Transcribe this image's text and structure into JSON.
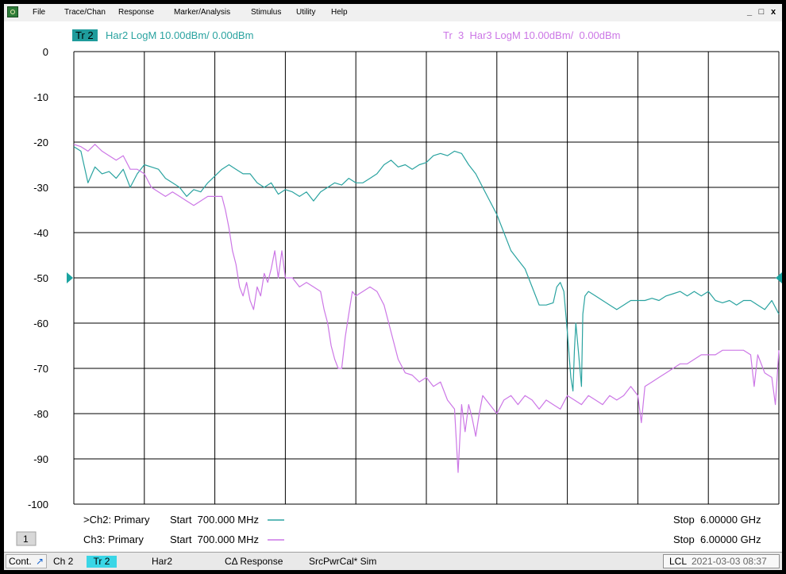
{
  "menubar": {
    "items": [
      "File",
      "Trace/Chan",
      "Response",
      "Marker/Analysis",
      "Stimulus",
      "Utility",
      "Help"
    ],
    "window_controls": [
      "_",
      "□",
      "x"
    ]
  },
  "trace_header": {
    "tr2_label": "Tr 2",
    "tr2_text": "Har2 LogM 10.00dBm/  0.00dBm",
    "tr3_text": "Tr  3  Har3 LogM 10.00dBm/  0.00dBm"
  },
  "colors": {
    "trace2": "#2aa3a0",
    "trace3": "#cc77e6",
    "tr2_badge": "#1f9c9c",
    "grid": "#000000",
    "ref_marker_left": "#1aa3a0",
    "ref_marker_right": "#1aa3a0"
  },
  "chart_data": {
    "type": "line",
    "ylim": [
      -100,
      0
    ],
    "xlim": [
      0,
      10
    ],
    "y_ticks": [
      "0",
      "-10",
      "-20",
      "-30",
      "-40",
      "-50",
      "-60",
      "-70",
      "-80",
      "-90",
      "-100"
    ],
    "reference_level": -50,
    "grid": true,
    "series": [
      {
        "key": "tr2",
        "points": [
          [
            0,
            -21
          ],
          [
            0.1,
            -22
          ],
          [
            0.2,
            -29
          ],
          [
            0.3,
            -25.5
          ],
          [
            0.4,
            -27
          ],
          [
            0.5,
            -26.5
          ],
          [
            0.6,
            -28
          ],
          [
            0.7,
            -26
          ],
          [
            0.8,
            -30
          ],
          [
            0.9,
            -27
          ],
          [
            1.0,
            -25
          ],
          [
            1.1,
            -25.5
          ],
          [
            1.2,
            -26
          ],
          [
            1.3,
            -28
          ],
          [
            1.4,
            -29
          ],
          [
            1.5,
            -30
          ],
          [
            1.6,
            -32
          ],
          [
            1.7,
            -30.5
          ],
          [
            1.8,
            -31
          ],
          [
            1.9,
            -29
          ],
          [
            2.0,
            -27.5
          ],
          [
            2.1,
            -26
          ],
          [
            2.2,
            -25
          ],
          [
            2.3,
            -26
          ],
          [
            2.4,
            -27
          ],
          [
            2.5,
            -27
          ],
          [
            2.6,
            -29
          ],
          [
            2.7,
            -30
          ],
          [
            2.8,
            -29
          ],
          [
            2.9,
            -31.5
          ],
          [
            3.0,
            -30.5
          ],
          [
            3.1,
            -31
          ],
          [
            3.2,
            -32
          ],
          [
            3.3,
            -31
          ],
          [
            3.4,
            -33
          ],
          [
            3.5,
            -31
          ],
          [
            3.6,
            -30
          ],
          [
            3.7,
            -29
          ],
          [
            3.8,
            -29.5
          ],
          [
            3.9,
            -28
          ],
          [
            4.0,
            -29
          ],
          [
            4.1,
            -29
          ],
          [
            4.2,
            -28
          ],
          [
            4.3,
            -27
          ],
          [
            4.4,
            -25
          ],
          [
            4.5,
            -24
          ],
          [
            4.6,
            -25.5
          ],
          [
            4.7,
            -25
          ],
          [
            4.8,
            -26
          ],
          [
            4.9,
            -25
          ],
          [
            5.0,
            -24.5
          ],
          [
            5.1,
            -23
          ],
          [
            5.2,
            -22.5
          ],
          [
            5.3,
            -23
          ],
          [
            5.4,
            -22
          ],
          [
            5.5,
            -22.5
          ],
          [
            5.6,
            -25
          ],
          [
            5.7,
            -27
          ],
          [
            5.8,
            -30
          ],
          [
            5.9,
            -33
          ],
          [
            6.0,
            -36
          ],
          [
            6.1,
            -40
          ],
          [
            6.2,
            -44
          ],
          [
            6.3,
            -46
          ],
          [
            6.4,
            -48
          ],
          [
            6.5,
            -52
          ],
          [
            6.6,
            -56
          ],
          [
            6.7,
            -56
          ],
          [
            6.8,
            -55.5
          ],
          [
            6.85,
            -52
          ],
          [
            6.9,
            -51
          ],
          [
            6.95,
            -53
          ],
          [
            7.0,
            -62
          ],
          [
            7.05,
            -72
          ],
          [
            7.08,
            -75
          ],
          [
            7.1,
            -66
          ],
          [
            7.12,
            -60
          ],
          [
            7.15,
            -65
          ],
          [
            7.2,
            -74
          ],
          [
            7.22,
            -58
          ],
          [
            7.25,
            -54
          ],
          [
            7.3,
            -53
          ],
          [
            7.4,
            -54
          ],
          [
            7.5,
            -55
          ],
          [
            7.6,
            -56
          ],
          [
            7.7,
            -57
          ],
          [
            7.8,
            -56
          ],
          [
            7.9,
            -55
          ],
          [
            8.0,
            -55
          ],
          [
            8.1,
            -55
          ],
          [
            8.2,
            -54.5
          ],
          [
            8.3,
            -55
          ],
          [
            8.4,
            -54
          ],
          [
            8.5,
            -53.5
          ],
          [
            8.6,
            -53
          ],
          [
            8.7,
            -54
          ],
          [
            8.8,
            -53
          ],
          [
            8.9,
            -54
          ],
          [
            9.0,
            -53
          ],
          [
            9.1,
            -55
          ],
          [
            9.2,
            -55.5
          ],
          [
            9.3,
            -55
          ],
          [
            9.4,
            -56
          ],
          [
            9.5,
            -55
          ],
          [
            9.6,
            -55
          ],
          [
            9.7,
            -56
          ],
          [
            9.8,
            -57
          ],
          [
            9.9,
            -55
          ],
          [
            10.0,
            -58
          ]
        ]
      },
      {
        "key": "tr3",
        "points": [
          [
            0,
            -20.5
          ],
          [
            0.1,
            -21
          ],
          [
            0.2,
            -22
          ],
          [
            0.3,
            -20.5
          ],
          [
            0.4,
            -22
          ],
          [
            0.5,
            -23
          ],
          [
            0.6,
            -24
          ],
          [
            0.7,
            -23
          ],
          [
            0.8,
            -26
          ],
          [
            0.9,
            -26
          ],
          [
            1.0,
            -27
          ],
          [
            1.1,
            -30
          ],
          [
            1.2,
            -31
          ],
          [
            1.3,
            -32
          ],
          [
            1.4,
            -31
          ],
          [
            1.5,
            -32
          ],
          [
            1.6,
            -33
          ],
          [
            1.7,
            -34
          ],
          [
            1.8,
            -33
          ],
          [
            1.9,
            -32
          ],
          [
            2.0,
            -32
          ],
          [
            2.1,
            -32
          ],
          [
            2.15,
            -35
          ],
          [
            2.2,
            -39
          ],
          [
            2.25,
            -44
          ],
          [
            2.3,
            -47
          ],
          [
            2.35,
            -52
          ],
          [
            2.4,
            -54
          ],
          [
            2.45,
            -51
          ],
          [
            2.5,
            -55
          ],
          [
            2.55,
            -57
          ],
          [
            2.6,
            -52
          ],
          [
            2.65,
            -54
          ],
          [
            2.7,
            -49
          ],
          [
            2.75,
            -51
          ],
          [
            2.8,
            -48
          ],
          [
            2.85,
            -44
          ],
          [
            2.9,
            -50
          ],
          [
            2.95,
            -44
          ],
          [
            3.0,
            -50
          ],
          [
            3.1,
            -50
          ],
          [
            3.2,
            -52
          ],
          [
            3.3,
            -51
          ],
          [
            3.4,
            -52
          ],
          [
            3.5,
            -53
          ],
          [
            3.55,
            -57
          ],
          [
            3.6,
            -60
          ],
          [
            3.65,
            -65
          ],
          [
            3.7,
            -68
          ],
          [
            3.75,
            -70
          ],
          [
            3.8,
            -70
          ],
          [
            3.85,
            -63
          ],
          [
            3.9,
            -58
          ],
          [
            3.95,
            -53
          ],
          [
            4.0,
            -54
          ],
          [
            4.1,
            -53
          ],
          [
            4.2,
            -52
          ],
          [
            4.3,
            -53
          ],
          [
            4.4,
            -56
          ],
          [
            4.5,
            -62
          ],
          [
            4.6,
            -68
          ],
          [
            4.7,
            -71
          ],
          [
            4.8,
            -71.5
          ],
          [
            4.9,
            -73
          ],
          [
            5.0,
            -72
          ],
          [
            5.1,
            -74
          ],
          [
            5.2,
            -73
          ],
          [
            5.3,
            -77
          ],
          [
            5.35,
            -78
          ],
          [
            5.4,
            -79
          ],
          [
            5.45,
            -93
          ],
          [
            5.5,
            -78
          ],
          [
            5.55,
            -84
          ],
          [
            5.6,
            -78
          ],
          [
            5.65,
            -81
          ],
          [
            5.7,
            -85
          ],
          [
            5.75,
            -80
          ],
          [
            5.8,
            -76
          ],
          [
            5.9,
            -78
          ],
          [
            6.0,
            -80
          ],
          [
            6.1,
            -77
          ],
          [
            6.2,
            -76
          ],
          [
            6.3,
            -78
          ],
          [
            6.4,
            -76
          ],
          [
            6.5,
            -77
          ],
          [
            6.6,
            -79
          ],
          [
            6.7,
            -77
          ],
          [
            6.8,
            -78
          ],
          [
            6.9,
            -79
          ],
          [
            7.0,
            -76
          ],
          [
            7.1,
            -77
          ],
          [
            7.2,
            -78
          ],
          [
            7.3,
            -76
          ],
          [
            7.4,
            -77
          ],
          [
            7.5,
            -78
          ],
          [
            7.6,
            -76
          ],
          [
            7.7,
            -77
          ],
          [
            7.8,
            -76
          ],
          [
            7.9,
            -74
          ],
          [
            8.0,
            -76
          ],
          [
            8.05,
            -82
          ],
          [
            8.1,
            -74
          ],
          [
            8.2,
            -73
          ],
          [
            8.3,
            -72
          ],
          [
            8.4,
            -71
          ],
          [
            8.5,
            -70
          ],
          [
            8.6,
            -69
          ],
          [
            8.7,
            -69
          ],
          [
            8.8,
            -68
          ],
          [
            8.9,
            -67
          ],
          [
            9.0,
            -67
          ],
          [
            9.1,
            -67
          ],
          [
            9.2,
            -66
          ],
          [
            9.3,
            -66
          ],
          [
            9.4,
            -66
          ],
          [
            9.5,
            -66
          ],
          [
            9.6,
            -67
          ],
          [
            9.65,
            -74
          ],
          [
            9.7,
            -67
          ],
          [
            9.8,
            -71
          ],
          [
            9.9,
            -72
          ],
          [
            9.95,
            -78
          ],
          [
            10.0,
            -66
          ]
        ]
      }
    ]
  },
  "channel_info": {
    "ch2": {
      "label": ">Ch2: Primary",
      "start": "Start  700.000 MHz",
      "stop": "Stop  6.00000 GHz"
    },
    "ch3": {
      "label": "Ch3: Primary",
      "start": "Start  700.000 MHz",
      "stop": "Stop  6.00000 GHz"
    }
  },
  "channel_number": "1",
  "statusbar": {
    "cont": "Cont.",
    "ch": "Ch 2",
    "tr": "Tr 2",
    "har": "Har2",
    "response": "CΔ Response",
    "srcpwr": "SrcPwrCal* Sim",
    "lcl": "LCL",
    "datetime": "2021-03-03 08:37"
  }
}
